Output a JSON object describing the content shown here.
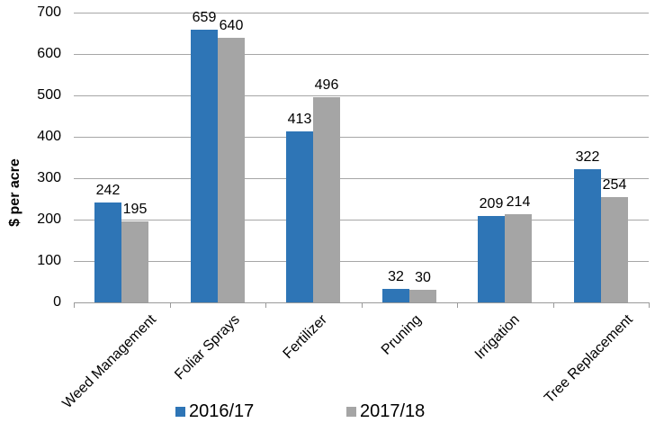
{
  "chart_data": {
    "type": "bar",
    "title": "",
    "xlabel": "",
    "ylabel": "$ per acre",
    "ylim": [
      0,
      700
    ],
    "yticks": [
      0,
      100,
      200,
      300,
      400,
      500,
      600,
      700
    ],
    "grid": true,
    "legend_position": "bottom",
    "categories": [
      "Weed Management",
      "Foliar Sprays",
      "Fertilizer",
      "Pruning",
      "Irrigation",
      "Tree Replacement"
    ],
    "series": [
      {
        "name": "2016/17",
        "color": "#2e75b6",
        "values": [
          242,
          659,
          413,
          32,
          209,
          322
        ]
      },
      {
        "name": "2017/18",
        "color": "#a5a5a5",
        "values": [
          195,
          640,
          496,
          30,
          214,
          254
        ]
      }
    ]
  }
}
